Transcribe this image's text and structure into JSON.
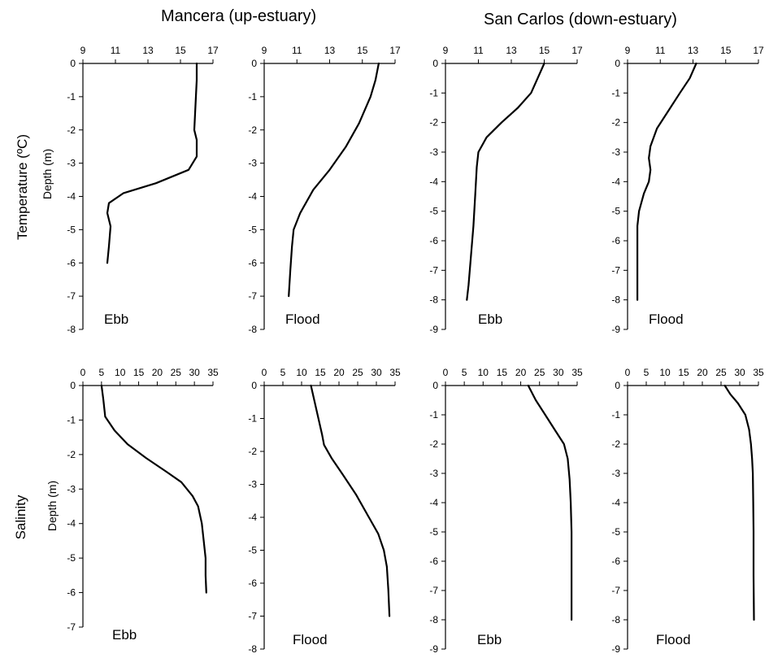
{
  "headers": {
    "left": "Mancera (up-estuary)",
    "right": "San Carlos (down-estuary)"
  },
  "rows": [
    {
      "label": "Temperature (ºC)",
      "ylabel": "Depth (m)"
    },
    {
      "label": "Salinity",
      "ylabel": "Depth (m)"
    }
  ],
  "chart_data": [
    {
      "type": "line",
      "panel_label": "Ebb",
      "station": "Mancera (up-estuary)",
      "variable": "Temperature (ºC)",
      "xlim": [
        9,
        17
      ],
      "xticks": [
        9,
        11,
        13,
        15,
        17
      ],
      "ylim": [
        -8,
        0
      ],
      "yticks": [
        0,
        -1,
        -2,
        -3,
        -4,
        -5,
        -6,
        -7,
        -8
      ],
      "ylabel": "Depth (m)",
      "series": [
        {
          "x": [
            16.0,
            16.0,
            15.95,
            15.9,
            15.85,
            16.0,
            16.0,
            15.5,
            13.5,
            11.5,
            10.6,
            10.5,
            10.7,
            10.6,
            10.5
          ],
          "y": [
            0,
            -0.5,
            -1.0,
            -1.5,
            -2.0,
            -2.3,
            -2.8,
            -3.2,
            -3.6,
            -3.9,
            -4.2,
            -4.5,
            -4.9,
            -5.5,
            -6.0
          ]
        }
      ]
    },
    {
      "type": "line",
      "panel_label": "Flood",
      "station": "Mancera (up-estuary)",
      "variable": "Temperature (ºC)",
      "xlim": [
        9,
        17
      ],
      "xticks": [
        9,
        11,
        13,
        15,
        17
      ],
      "ylim": [
        -8,
        0
      ],
      "yticks": [
        0,
        -1,
        -2,
        -3,
        -4,
        -5,
        -6,
        -7,
        -8
      ],
      "ylabel": "",
      "series": [
        {
          "x": [
            16.0,
            15.8,
            15.5,
            14.8,
            14.0,
            13.0,
            12.0,
            11.2,
            10.8,
            10.7,
            10.6,
            10.5
          ],
          "y": [
            0,
            -0.5,
            -1.0,
            -1.8,
            -2.5,
            -3.2,
            -3.8,
            -4.5,
            -5.0,
            -5.5,
            -6.2,
            -7.0
          ]
        }
      ]
    },
    {
      "type": "line",
      "panel_label": "Ebb",
      "station": "San Carlos (down-estuary)",
      "variable": "Temperature (ºC)",
      "xlim": [
        9,
        17
      ],
      "xticks": [
        9,
        11,
        13,
        15,
        17
      ],
      "ylim": [
        -9,
        0
      ],
      "yticks": [
        0,
        -1,
        -2,
        -3,
        -4,
        -5,
        -6,
        -7,
        -8,
        -9
      ],
      "ylabel": "",
      "series": [
        {
          "x": [
            15.0,
            14.6,
            14.2,
            13.4,
            12.4,
            11.5,
            11.0,
            10.9,
            10.8,
            10.7,
            10.55,
            10.4,
            10.3
          ],
          "y": [
            0,
            -0.5,
            -1.0,
            -1.5,
            -2.0,
            -2.5,
            -3.0,
            -3.5,
            -4.5,
            -5.5,
            -6.5,
            -7.5,
            -8.0
          ]
        }
      ]
    },
    {
      "type": "line",
      "panel_label": "Flood",
      "station": "San Carlos (down-estuary)",
      "variable": "Temperature (ºC)",
      "xlim": [
        9,
        17
      ],
      "xticks": [
        9,
        11,
        13,
        15,
        17
      ],
      "ylim": [
        -9,
        0
      ],
      "yticks": [
        0,
        -1,
        -2,
        -3,
        -4,
        -5,
        -6,
        -7,
        -8,
        -9
      ],
      "ylabel": "",
      "series": [
        {
          "x": [
            13.2,
            12.8,
            12.2,
            11.5,
            10.8,
            10.4,
            10.3,
            10.4,
            10.3,
            10.0,
            9.7,
            9.6,
            9.6,
            9.6
          ],
          "y": [
            0,
            -0.5,
            -1.0,
            -1.6,
            -2.2,
            -2.8,
            -3.2,
            -3.6,
            -4.0,
            -4.4,
            -5.0,
            -5.5,
            -7.0,
            -8.0
          ]
        }
      ]
    },
    {
      "type": "line",
      "panel_label": "Ebb",
      "station": "Mancera (up-estuary)",
      "variable": "Salinity",
      "xlim": [
        0,
        35
      ],
      "xticks": [
        0,
        5,
        10,
        15,
        20,
        25,
        30,
        35
      ],
      "ylim": [
        -7,
        0
      ],
      "yticks": [
        0,
        -1,
        -2,
        -3,
        -4,
        -5,
        -6,
        -7
      ],
      "ylabel": "Depth (m)",
      "series": [
        {
          "x": [
            5.0,
            5.5,
            6.0,
            8.5,
            12.0,
            17.0,
            22.5,
            26.5,
            29.5,
            31.0,
            32.0,
            32.5,
            33.0,
            33.0,
            33.2
          ],
          "y": [
            0,
            -0.4,
            -0.9,
            -1.3,
            -1.7,
            -2.1,
            -2.5,
            -2.8,
            -3.2,
            -3.5,
            -4.0,
            -4.5,
            -5.0,
            -5.5,
            -6.0
          ]
        }
      ]
    },
    {
      "type": "line",
      "panel_label": "Flood",
      "station": "Mancera (up-estuary)",
      "variable": "Salinity",
      "xlim": [
        0,
        35
      ],
      "xticks": [
        0,
        5,
        10,
        15,
        20,
        25,
        30,
        35
      ],
      "ylim": [
        -8,
        0
      ],
      "yticks": [
        0,
        -1,
        -2,
        -3,
        -4,
        -5,
        -6,
        -7,
        -8
      ],
      "ylabel": "",
      "series": [
        {
          "x": [
            12.5,
            13.5,
            14.5,
            15.5,
            16.0,
            18.0,
            21.0,
            24.5,
            28.0,
            30.5,
            32.0,
            32.8,
            33.2,
            33.5
          ],
          "y": [
            0,
            -0.5,
            -1.0,
            -1.5,
            -1.8,
            -2.2,
            -2.7,
            -3.3,
            -4.0,
            -4.5,
            -5.0,
            -5.5,
            -6.2,
            -7.0
          ]
        }
      ]
    },
    {
      "type": "line",
      "panel_label": "Ebb",
      "station": "San Carlos (down-estuary)",
      "variable": "Salinity",
      "xlim": [
        0,
        35
      ],
      "xticks": [
        0,
        5,
        10,
        15,
        20,
        25,
        30,
        35
      ],
      "ylim": [
        -9,
        0
      ],
      "yticks": [
        0,
        -1,
        -2,
        -3,
        -4,
        -5,
        -6,
        -7,
        -8,
        -9
      ],
      "ylabel": "",
      "series": [
        {
          "x": [
            22.0,
            24.0,
            26.5,
            29.0,
            31.5,
            32.5,
            33.0,
            33.3,
            33.5,
            33.5,
            33.5
          ],
          "y": [
            0,
            -0.5,
            -1.0,
            -1.5,
            -2.0,
            -2.5,
            -3.2,
            -4.0,
            -5.0,
            -6.5,
            -8.0
          ]
        }
      ]
    },
    {
      "type": "line",
      "panel_label": "Flood",
      "station": "San Carlos (down-estuary)",
      "variable": "Salinity",
      "xlim": [
        0,
        35
      ],
      "xticks": [
        0,
        5,
        10,
        15,
        20,
        25,
        30,
        35
      ],
      "ylim": [
        -9,
        0
      ],
      "yticks": [
        0,
        -1,
        -2,
        -3,
        -4,
        -5,
        -6,
        -7,
        -8,
        -9
      ],
      "ylabel": "",
      "series": [
        {
          "x": [
            26.0,
            27.5,
            29.5,
            31.5,
            32.5,
            33.0,
            33.3,
            33.5,
            33.6,
            33.7,
            33.7,
            33.8
          ],
          "y": [
            0,
            -0.3,
            -0.6,
            -1.0,
            -1.5,
            -2.0,
            -2.5,
            -3.0,
            -4.0,
            -5.0,
            -6.5,
            -8.0
          ]
        }
      ]
    }
  ]
}
